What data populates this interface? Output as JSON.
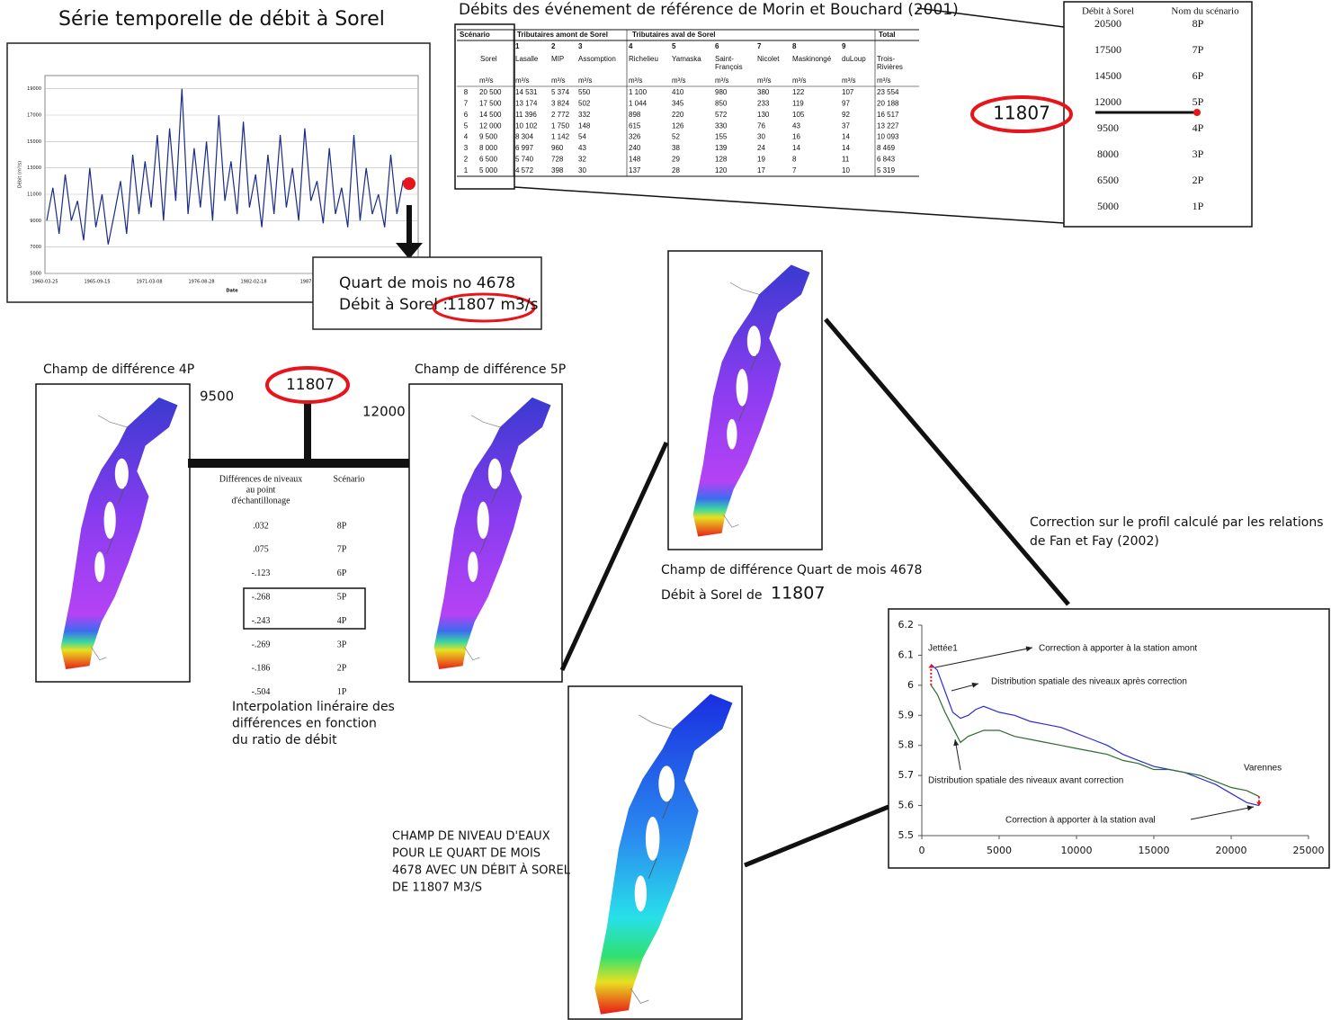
{
  "timeseries": {
    "type": "line",
    "title": "Série temporelle de débit à Sorel",
    "y_label": "Débit (m³/s)",
    "x_label": "Date",
    "xtick_labels": [
      "1960-03-25",
      "1965-09-15",
      "1971-03-08",
      "1976-08-28",
      "1982-02-18",
      "1987"
    ],
    "ylim": [
      5000,
      20000
    ],
    "yticks": [
      5000,
      7000,
      9000,
      11000,
      13000,
      15000,
      17000,
      19000
    ],
    "grid": true,
    "color": "#1a2a8a",
    "values": [
      9000,
      11500,
      8000,
      12500,
      9000,
      10500,
      7500,
      13000,
      8500,
      11000,
      7200,
      9500,
      12000,
      8000,
      14000,
      9500,
      13500,
      10000,
      15500,
      9000,
      16000,
      10500,
      19000,
      9500,
      14500,
      10000,
      15000,
      9000,
      17000,
      10500,
      13500,
      9500,
      16500,
      10000,
      12500,
      8500,
      14000,
      9500,
      15500,
      10000,
      13000,
      9000,
      16000,
      10500,
      12000,
      8800,
      14500,
      9500,
      11500,
      8500,
      15500,
      9000,
      13000,
      9500,
      11000,
      8500,
      14000,
      9500,
      12000,
      11500
    ],
    "highlight_value": 11807,
    "highlight_color": "#e8141b"
  },
  "callout": {
    "period": "Quart de mois no 4678",
    "flow_label": "Débit à Sorel :",
    "flow": "11807 m3/s"
  },
  "reference_table": {
    "title": "Débits des événement de référence de Morin et Bouchard (2001)",
    "group_headers": [
      "Scénario",
      "Tributaires amont de Sorel",
      "Tributaires aval de Sorel",
      "Total"
    ],
    "numbers": [
      "1",
      "2",
      "3",
      "4",
      "5",
      "6",
      "7",
      "8",
      "9"
    ],
    "columns": [
      "Sorel",
      "Lasalle",
      "MIP",
      "Assomption",
      "Richelieu",
      "Yamaska",
      "Saint-François",
      "Nicolet",
      "Maskinongé",
      "duLoup",
      "Trois-Rivières"
    ],
    "unit": "m³/s",
    "rows": [
      [
        "8",
        "20 500",
        "14 531",
        "5 374",
        "550",
        "1 100",
        "410",
        "980",
        "380",
        "122",
        "107",
        "23 554"
      ],
      [
        "7",
        "17 500",
        "13 174",
        "3 824",
        "502",
        "1 044",
        "345",
        "850",
        "233",
        "119",
        "97",
        "20 188"
      ],
      [
        "6",
        "14 500",
        "11 396",
        "2 772",
        "332",
        "898",
        "220",
        "572",
        "130",
        "105",
        "92",
        "16 517"
      ],
      [
        "5",
        "12 000",
        "10 102",
        "1 750",
        "148",
        "615",
        "126",
        "330",
        "76",
        "43",
        "37",
        "13 227"
      ],
      [
        "4",
        "9 500",
        "8 304",
        "1 142",
        "54",
        "326",
        "52",
        "155",
        "30",
        "16",
        "14",
        "10 093"
      ],
      [
        "3",
        "8 000",
        "6 997",
        "960",
        "43",
        "240",
        "38",
        "139",
        "24",
        "14",
        "14",
        "8 469"
      ],
      [
        "2",
        "6 500",
        "5 740",
        "728",
        "32",
        "148",
        "29",
        "128",
        "19",
        "8",
        "11",
        "6 843"
      ],
      [
        "1",
        "5 000",
        "4 572",
        "398",
        "30",
        "137",
        "28",
        "120",
        "17",
        "7",
        "10",
        "5 319"
      ]
    ]
  },
  "scenario_list": {
    "headers": [
      "Débit à Sorel",
      "Nom du scénario"
    ],
    "rows": [
      [
        20500,
        "8P"
      ],
      [
        17500,
        "7P"
      ],
      [
        14500,
        "6P"
      ],
      [
        12000,
        "5P"
      ],
      [
        9500,
        "4P"
      ],
      [
        8000,
        "3P"
      ],
      [
        6500,
        "2P"
      ],
      [
        5000,
        "1P"
      ]
    ],
    "highlight": 11807
  },
  "difference_maps": {
    "left_title": "Champ de différence 4P",
    "left_flow": 9500,
    "target_flow": 11807,
    "right_flow": 12000,
    "right_title": "Champ de différence 5P"
  },
  "difference_table": {
    "header_lines": [
      "Différences de niveaux",
      "au point",
      "d'échantillonage"
    ],
    "scenario_header": "Scénario",
    "rows": [
      [
        ".032",
        "8P"
      ],
      [
        ".075",
        "7P"
      ],
      [
        "-.123",
        "6P"
      ],
      [
        "-.268",
        "5P"
      ],
      [
        "-.243",
        "4P"
      ],
      [
        "-.269",
        "3P"
      ],
      [
        "-.186",
        "2P"
      ],
      [
        "-.504",
        "1P"
      ]
    ],
    "caption_lines": [
      "Interpolation linéraire des",
      "différences en fonction",
      "du ratio de débit"
    ]
  },
  "result_map": {
    "caption_lines": [
      "Champ de différence Quart de mois 4678",
      "Débit à Sorel de"
    ],
    "flow": 11807
  },
  "correction_note": {
    "lines": [
      "Correction sur le profil calculé par les relations",
      "de Fan et Fay (2002)"
    ]
  },
  "profile_chart": {
    "type": "line",
    "xlim": [
      0,
      25000
    ],
    "xticks": [
      0,
      5000,
      10000,
      15000,
      20000,
      25000
    ],
    "ylim": [
      5.5,
      6.2
    ],
    "yticks": [
      5.5,
      5.6,
      5.7,
      5.8,
      5.9,
      6,
      6.1,
      6.2
    ],
    "x": [
      600,
      1000,
      1500,
      2000,
      2500,
      3000,
      3500,
      4000,
      5000,
      6000,
      7000,
      8000,
      9000,
      10000,
      11000,
      12000,
      13000,
      14000,
      15000,
      16000,
      17000,
      18000,
      19000,
      20000,
      21000,
      21800
    ],
    "series": [
      {
        "color": "#2b2bdc",
        "values": [
          6.07,
          6.05,
          5.98,
          5.91,
          5.89,
          5.9,
          5.92,
          5.93,
          5.91,
          5.9,
          5.88,
          5.87,
          5.86,
          5.84,
          5.82,
          5.8,
          5.77,
          5.75,
          5.73,
          5.72,
          5.71,
          5.69,
          5.67,
          5.64,
          5.61,
          5.6
        ]
      },
      {
        "color": "#2e6b2e",
        "values": [
          6.0,
          5.97,
          5.91,
          5.86,
          5.81,
          5.83,
          5.84,
          5.85,
          5.85,
          5.83,
          5.82,
          5.81,
          5.8,
          5.79,
          5.78,
          5.77,
          5.75,
          5.74,
          5.72,
          5.72,
          5.71,
          5.7,
          5.68,
          5.66,
          5.65,
          5.63
        ]
      }
    ],
    "corrections": [
      {
        "x": 600,
        "from": 6.0,
        "to": 6.07,
        "color": "#e8141b"
      },
      {
        "x": 21800,
        "from": 5.63,
        "to": 5.6,
        "color": "#e8141b"
      }
    ],
    "annotations": [
      "Jettée1",
      "Correction à apporter à la station amont",
      "Distribution spatiale des niveaux après correction",
      "Varennes",
      "Distribution spatiale des niveaux avant correction",
      "Correction à apporter à la station aval"
    ]
  },
  "level_map": {
    "caption_lines": [
      "CHAMP DE NIVEAU D'EAUX",
      "POUR LE QUART DE MOIS",
      "4678 AVEC UN DÉBIT À SOREL",
      "DE 11807 M3/S"
    ]
  }
}
